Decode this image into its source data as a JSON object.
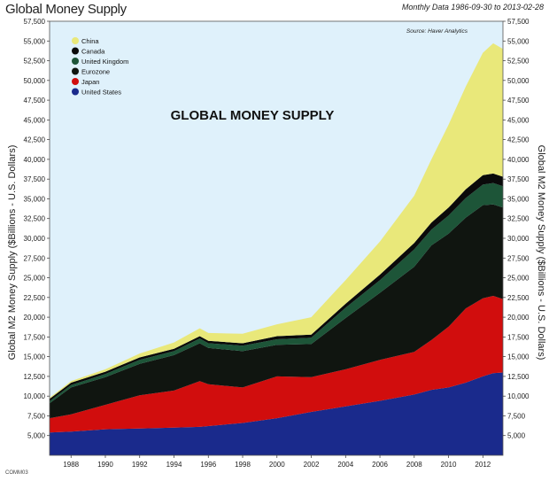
{
  "header": {
    "title": "Global Money Supply",
    "date_range": "Monthly Data 1986-09-30 to 2013-02-28",
    "code": "COMM03"
  },
  "colors": {
    "plot_background": "#dff1fb",
    "United States": "#1a2a8c",
    "Japan": "#d10d0d",
    "Eurozone": "#101510",
    "United Kingdom": "#1d5538",
    "Canada": "#0a0a0a",
    "China": "#e9e87a"
  },
  "chart_data": {
    "type": "area",
    "stacked": true,
    "title": "GLOBAL MONEY SUPPLY",
    "source": "Source: Haver Analytics",
    "ylabel_left": "Global M2 Money Supply ($Billions - U.S. Dollars)",
    "ylabel_right": "Global M2 Money Supply  ($Billions - U.S. Dollars)",
    "xlim": [
      1986.75,
      2013.17
    ],
    "ylim": [
      2500,
      57500
    ],
    "yticks": [
      5000,
      7500,
      10000,
      12500,
      15000,
      17500,
      20000,
      22500,
      25000,
      27500,
      30000,
      32500,
      35000,
      37500,
      40000,
      42500,
      45000,
      47500,
      50000,
      52500,
      55000,
      57500
    ],
    "ytick_labels": [
      "5,000",
      "7,500",
      "10,000",
      "12,500",
      "15,000",
      "17,500",
      "20,000",
      "22,500",
      "25,000",
      "27,500",
      "30,000",
      "32,500",
      "35,000",
      "37,500",
      "40,000",
      "42,500",
      "45,000",
      "47,500",
      "50,000",
      "52,500",
      "55,000",
      "57,500"
    ],
    "xticks": [
      1988,
      1990,
      1992,
      1994,
      1996,
      1998,
      2000,
      2002,
      2004,
      2006,
      2008,
      2010,
      2012
    ],
    "xtick_labels": [
      "1988",
      "1990",
      "1992",
      "1994",
      "1996",
      "1998",
      "2000",
      "2002",
      "2004",
      "2006",
      "2008",
      "2010",
      "2012"
    ],
    "legend": [
      "China",
      "Canada",
      "United Kingdom",
      "Eurozone",
      "Japan",
      "United States"
    ],
    "legend_position": "top-left",
    "x": [
      1986.75,
      1988,
      1990,
      1992,
      1994,
      1995.5,
      1996,
      1998,
      2000,
      2002,
      2004,
      2006,
      2008,
      2009,
      2010,
      2011,
      2012,
      2012.6,
      2013.17
    ],
    "series": [
      {
        "name": "United States",
        "values": [
          2900,
          3000,
          3300,
          3400,
          3500,
          3600,
          3700,
          4100,
          4700,
          5500,
          6200,
          6900,
          7700,
          8300,
          8600,
          9200,
          10000,
          10400,
          10500
        ]
      },
      {
        "name": "Japan",
        "values": [
          1800,
          2200,
          3100,
          4200,
          4700,
          5800,
          5300,
          4500,
          5300,
          4400,
          4700,
          5200,
          5400,
          6300,
          7700,
          9400,
          9900,
          9800,
          9300
        ]
      },
      {
        "name": "Eurozone",
        "values": [
          1900,
          3400,
          3500,
          4000,
          4500,
          4800,
          4600,
          4600,
          4000,
          4200,
          6500,
          8500,
          10800,
          12000,
          11800,
          11500,
          11800,
          11600,
          11600
        ]
      },
      {
        "name": "United Kingdom",
        "values": [
          250,
          300,
          400,
          500,
          500,
          600,
          600,
          700,
          700,
          800,
          1300,
          1600,
          2200,
          2000,
          2300,
          2500,
          2600,
          2700,
          2700
        ]
      },
      {
        "name": "Canada",
        "values": [
          300,
          300,
          300,
          300,
          300,
          300,
          300,
          300,
          400,
          400,
          500,
          700,
          800,
          900,
          1000,
          1100,
          1200,
          1200,
          1200
        ]
      },
      {
        "name": "China",
        "values": [
          150,
          200,
          300,
          500,
          800,
          1000,
          1000,
          1200,
          1500,
          2200,
          3000,
          4200,
          6000,
          8000,
          10500,
          13000,
          15500,
          16500,
          16200
        ]
      }
    ]
  }
}
